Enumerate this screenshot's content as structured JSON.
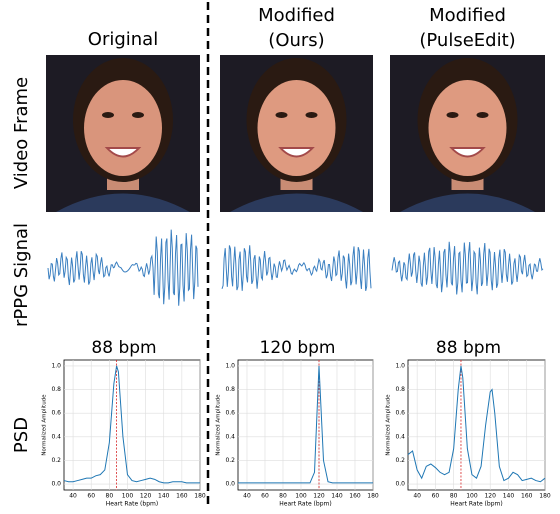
{
  "columns": [
    {
      "title_lines": [
        "Original"
      ]
    },
    {
      "title_lines": [
        "Modified",
        "(Ours)"
      ]
    },
    {
      "title_lines": [
        "Modified",
        "(PulseEdit)"
      ]
    }
  ],
  "row_labels": [
    "Video Frame",
    "rPPG Signal",
    "PSD"
  ],
  "chart_data": [
    {
      "type": "line",
      "title": "88 bpm",
      "xlabel": "Heart Rate (bpm)",
      "ylabel": "Normalized Amplitude",
      "x": [
        30,
        35,
        40,
        45,
        50,
        55,
        60,
        65,
        70,
        75,
        80,
        85,
        88,
        90,
        95,
        100,
        105,
        110,
        115,
        120,
        125,
        130,
        135,
        140,
        145,
        150,
        155,
        160,
        165,
        170,
        175,
        180
      ],
      "values": [
        0.03,
        0.02,
        0.02,
        0.03,
        0.04,
        0.05,
        0.05,
        0.07,
        0.08,
        0.12,
        0.35,
        0.85,
        1.0,
        0.95,
        0.4,
        0.08,
        0.03,
        0.02,
        0.03,
        0.04,
        0.05,
        0.04,
        0.02,
        0.01,
        0.01,
        0.02,
        0.02,
        0.02,
        0.01,
        0.01,
        0.01,
        0.01
      ],
      "color": "#1f77b4",
      "vline": 88,
      "vline_color": "#d62728",
      "xlim": [
        30,
        180
      ],
      "ylim": [
        -0.05,
        1.05
      ],
      "xticks": [
        40,
        60,
        80,
        100,
        120,
        140,
        160,
        180
      ],
      "yticks": [
        {
          "value": 0,
          "label": "0.0"
        },
        0.2,
        0.4,
        0.6,
        0.8,
        {
          "value": 1,
          "label": "1.0"
        }
      ],
      "grid": true
    },
    {
      "type": "line",
      "title": "120 bpm",
      "xlabel": "Heart Rate (bpm)",
      "ylabel": "Normalized Amplitude",
      "x": [
        30,
        35,
        40,
        45,
        50,
        55,
        60,
        65,
        70,
        75,
        80,
        85,
        90,
        95,
        100,
        105,
        110,
        115,
        120,
        125,
        130,
        135,
        140,
        145,
        150,
        155,
        160,
        165,
        170,
        175,
        180
      ],
      "values": [
        0.01,
        0.01,
        0.01,
        0.01,
        0.01,
        0.01,
        0.01,
        0.01,
        0.01,
        0.01,
        0.01,
        0.01,
        0.01,
        0.01,
        0.01,
        0.01,
        0.01,
        0.1,
        1.0,
        0.2,
        0.02,
        0.01,
        0.01,
        0.01,
        0.01,
        0.01,
        0.01,
        0.01,
        0.01,
        0.01,
        0.01
      ],
      "color": "#1f77b4",
      "vline": 120,
      "vline_color": "#d62728",
      "xlim": [
        30,
        180
      ],
      "ylim": [
        -0.05,
        1.05
      ],
      "xticks": [
        40,
        60,
        80,
        100,
        120,
        140,
        160,
        180
      ],
      "yticks": [
        {
          "value": 0,
          "label": "0.0"
        },
        0.2,
        0.4,
        0.6,
        0.8,
        {
          "value": 1,
          "label": "1.0"
        }
      ],
      "grid": true
    },
    {
      "type": "line",
      "title": "88 bpm",
      "xlabel": "Heart Rate (bpm)",
      "ylabel": "Normalized Amplitude",
      "x": [
        30,
        35,
        40,
        45,
        50,
        55,
        60,
        65,
        70,
        75,
        80,
        85,
        88,
        90,
        95,
        100,
        105,
        110,
        115,
        120,
        122,
        125,
        130,
        135,
        140,
        145,
        150,
        155,
        160,
        165,
        170,
        175,
        180
      ],
      "values": [
        0.25,
        0.28,
        0.12,
        0.05,
        0.15,
        0.17,
        0.14,
        0.1,
        0.08,
        0.1,
        0.3,
        0.8,
        1.0,
        0.9,
        0.3,
        0.08,
        0.05,
        0.15,
        0.5,
        0.78,
        0.8,
        0.6,
        0.15,
        0.03,
        0.05,
        0.1,
        0.08,
        0.03,
        0.04,
        0.05,
        0.03,
        0.02,
        0.05
      ],
      "color": "#1f77b4",
      "vline": 88,
      "vline_color": "#d62728",
      "xlim": [
        30,
        180
      ],
      "ylim": [
        -0.05,
        1.05
      ],
      "xticks": [
        40,
        60,
        80,
        100,
        120,
        140,
        160,
        180
      ],
      "yticks": [
        {
          "value": 0,
          "label": "0.0"
        },
        0.2,
        0.4,
        0.6,
        0.8,
        {
          "value": 1,
          "label": "1.0"
        }
      ],
      "grid": true
    }
  ]
}
